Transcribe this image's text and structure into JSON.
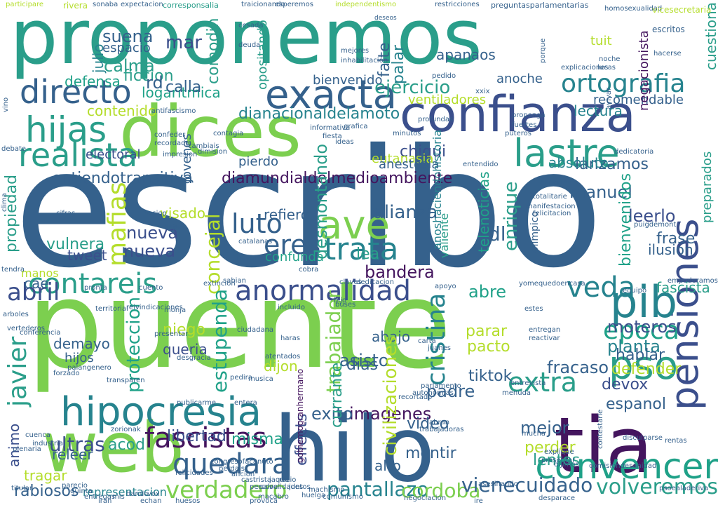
{
  "colors": {
    "background": "#ffffff",
    "palette": [
      "#35618c",
      "#2a9e8a",
      "#7ccf4f",
      "#44155e",
      "#3b4f8c",
      "#1fa188",
      "#b4dd2b",
      "#26838e"
    ]
  },
  "words": [
    {
      "text": "escribo",
      "color": "#35618c"
    },
    {
      "text": "puente",
      "color": "#7ccf4f"
    },
    {
      "text": "proponemos",
      "color": "#2a9e8a"
    },
    {
      "text": "confianza",
      "color": "#3b4f8c"
    },
    {
      "text": "dices",
      "color": "#7ccf4f"
    },
    {
      "text": "hilo",
      "color": "#35618c"
    },
    {
      "text": "tia",
      "color": "#44155e"
    },
    {
      "text": "web",
      "color": "#7ccf4f"
    },
    {
      "text": "hipocresia",
      "color": "#26838e"
    },
    {
      "text": "exacta",
      "color": "#35618c"
    },
    {
      "text": "lastre",
      "color": "#2a9e8a"
    },
    {
      "text": "pensiones",
      "color": "#3b4f8c"
    },
    {
      "text": "pso",
      "color": "#2a9e8a"
    },
    {
      "text": "pib",
      "color": "#26838e"
    },
    {
      "text": "directo",
      "color": "#35618c"
    },
    {
      "text": "contareis",
      "color": "#2a9e8a"
    },
    {
      "text": "anormalidad",
      "color": "#3b4f8c"
    },
    {
      "text": "convencer",
      "color": "#1fa188"
    },
    {
      "text": "realista",
      "color": "#2a9e8a"
    },
    {
      "text": "ortografia",
      "color": "#26838e"
    },
    {
      "text": "ave",
      "color": "#7ccf4f"
    },
    {
      "text": "fascistas",
      "color": "#44155e"
    },
    {
      "text": "quedara",
      "color": "#35618c"
    },
    {
      "text": "hijas",
      "color": "#2a9e8a"
    },
    {
      "text": "epoca",
      "color": "#1fa188"
    },
    {
      "text": "veda",
      "color": "#26838e"
    },
    {
      "text": "luto",
      "color": "#35618c"
    },
    {
      "text": "eres",
      "color": "#35618c"
    },
    {
      "text": "trata",
      "color": "#26838e"
    },
    {
      "text": "extra",
      "color": "#2a9e8a"
    },
    {
      "text": "abril",
      "color": "#3b4f8c"
    },
    {
      "text": "cristina",
      "color": "#26838e"
    },
    {
      "text": "mafias",
      "color": "#b4dd2b"
    },
    {
      "text": "javier",
      "color": "#2a9e8a"
    },
    {
      "text": "verdadero",
      "color": "#7ccf4f"
    },
    {
      "text": "volveremos",
      "color": "#2a9e8a"
    },
    {
      "text": "pantallazo",
      "color": "#26838e"
    },
    {
      "text": "cordoba",
      "color": "#7ccf4f"
    },
    {
      "text": "vienecuidado",
      "color": "#35618c"
    },
    {
      "text": "imagenes",
      "color": "#44155e"
    },
    {
      "text": "ultras",
      "color": "#3b4f8c"
    },
    {
      "text": "diamundialdelmedioambiente",
      "color": "#44155e"
    },
    {
      "text": "dianacionaldelamoto",
      "color": "#26838e"
    },
    {
      "text": "entiendotransitiva",
      "color": "#35618c"
    },
    {
      "text": "ejercicio",
      "color": "#2a9e8a"
    },
    {
      "text": "alianza",
      "color": "#35618c"
    },
    {
      "text": "bandera",
      "color": "#44155e"
    },
    {
      "text": "nueva",
      "color": "#3b4f8c"
    },
    {
      "text": "fracaso",
      "color": "#35618c"
    },
    {
      "text": "planta",
      "color": "#26838e"
    },
    {
      "text": "moteros",
      "color": "#3b4f8c"
    },
    {
      "text": "lanzamos",
      "color": "#35618c"
    },
    {
      "text": "manuel",
      "color": "#35618c"
    },
    {
      "text": "leerlo",
      "color": "#3b4f8c"
    },
    {
      "text": "chiqui",
      "color": "#3b4f8c"
    },
    {
      "text": "lectura",
      "color": "#26838e"
    },
    {
      "text": "absoluto",
      "color": "#26838e"
    },
    {
      "text": "propiedad",
      "color": "#2a9e8a"
    },
    {
      "text": "concejal",
      "color": "#b4dd2b"
    },
    {
      "text": "bienvenidos",
      "color": "#1fa188"
    },
    {
      "text": "trabajador",
      "color": "#7ccf4f"
    },
    {
      "text": "estupenda",
      "color": "#1fa188"
    },
    {
      "text": "proteccion",
      "color": "#1fa188"
    },
    {
      "text": "exito",
      "color": "#35618c"
    },
    {
      "text": "mejor",
      "color": "#35618c"
    },
    {
      "text": "padre",
      "color": "#35618c"
    },
    {
      "text": "libertad",
      "color": "#3b4f8c"
    },
    {
      "text": "misma",
      "color": "#1fa188"
    },
    {
      "text": "acod",
      "color": "#2a9e8a"
    },
    {
      "text": "perder",
      "color": "#b4dd2b"
    },
    {
      "text": "espanol",
      "color": "#35618c"
    },
    {
      "text": "devox",
      "color": "#3b4f8c"
    },
    {
      "text": "frase",
      "color": "#35618c"
    },
    {
      "text": "ilusion",
      "color": "#35618c"
    },
    {
      "text": "fascista",
      "color": "#2a9e8a"
    },
    {
      "text": "dl",
      "color": "#35618c"
    },
    {
      "text": "mar",
      "color": "#3b4f8c"
    },
    {
      "text": "suena",
      "color": "#35618c"
    },
    {
      "text": "calma",
      "color": "#2a9e8a"
    },
    {
      "text": "ficcion",
      "color": "#2a9e8a"
    },
    {
      "text": "logaritmica",
      "color": "#1fa188"
    },
    {
      "text": "contenido",
      "color": "#b4dd2b"
    },
    {
      "text": "electoral",
      "color": "#3b4f8c"
    },
    {
      "text": "visado",
      "color": "#b4dd2b"
    },
    {
      "text": "refiero",
      "color": "#35618c"
    },
    {
      "text": "tweet",
      "color": "#3b4f8c"
    },
    {
      "text": "vulnera",
      "color": "#2a9e8a"
    },
    {
      "text": "abre",
      "color": "#1fa188"
    },
    {
      "text": "dijon",
      "color": "#b4dd2b"
    },
    {
      "text": "niego",
      "color": "#b4dd2b"
    },
    {
      "text": "queria",
      "color": "#3b4f8c"
    },
    {
      "text": "demayo",
      "color": "#35618c"
    },
    {
      "text": "hijos",
      "color": "#35618c"
    },
    {
      "text": "asisto",
      "color": "#35618c"
    },
    {
      "text": "pacto",
      "color": "#b4dd2b"
    },
    {
      "text": "tiktok",
      "color": "#35618c"
    },
    {
      "text": "parar",
      "color": "#b4dd2b"
    },
    {
      "text": "hablar",
      "color": "#35618c"
    },
    {
      "text": "defender",
      "color": "#b4dd2b"
    },
    {
      "text": "lentos",
      "color": "#2a9e8a"
    },
    {
      "text": "dias",
      "color": "#35618c"
    },
    {
      "text": "abajo",
      "color": "#35618c"
    },
    {
      "text": "tragar",
      "color": "#b4dd2b"
    },
    {
      "text": "rabiosos",
      "color": "#35618c"
    },
    {
      "text": "representacion",
      "color": "#26838e"
    },
    {
      "text": "currante",
      "color": "#2a9e8a"
    },
    {
      "text": "effects",
      "color": "#3b4f8c"
    },
    {
      "text": "mentir",
      "color": "#35618c"
    },
    {
      "text": "alto",
      "color": "#35618c"
    },
    {
      "text": "video",
      "color": "#35618c"
    },
    {
      "text": "lea",
      "color": "#2a9e8a"
    },
    {
      "text": "cae",
      "color": "#35618c"
    },
    {
      "text": "manos",
      "color": "#b4dd2b"
    },
    {
      "text": "ventiladores",
      "color": "#b4dd2b"
    },
    {
      "text": "anoche",
      "color": "#35618c"
    },
    {
      "text": "recomendable",
      "color": "#35618c"
    },
    {
      "text": "apanaos",
      "color": "#35618c"
    },
    {
      "text": "palar",
      "color": "#26838e"
    },
    {
      "text": "falte",
      "color": "#35618c"
    },
    {
      "text": "julio",
      "color": "#26838e"
    },
    {
      "text": "espacio",
      "color": "#35618c"
    },
    {
      "text": "cuestiona",
      "color": "#2a9e8a"
    },
    {
      "text": "tuit",
      "color": "#b4dd2b"
    },
    {
      "text": "negacionista",
      "color": "#44155e"
    },
    {
      "text": "comodin",
      "color": "#2a9e8a"
    },
    {
      "text": "opositando",
      "color": "#2a9e8a"
    },
    {
      "text": "jovenes",
      "color": "#35618c"
    },
    {
      "text": "eutanasia",
      "color": "#b4dd2b"
    },
    {
      "text": "anestesia",
      "color": "#35618c"
    },
    {
      "text": "pierdo",
      "color": "#35618c"
    },
    {
      "text": "desmontando",
      "color": "#2a9e8a"
    },
    {
      "text": "confunda",
      "color": "#1fa188"
    },
    {
      "text": "nueva",
      "color": "#3b4f8c"
    },
    {
      "text": "enrique",
      "color": "#2a9e8a"
    },
    {
      "text": "preparados",
      "color": "#2a9e8a"
    },
    {
      "text": "valiente",
      "color": "#2a9e8a"
    },
    {
      "text": "anoshaciendohistoria",
      "color": "#26838e"
    },
    {
      "text": "telenoticias",
      "color": "#1fa188"
    },
    {
      "text": "olimpico",
      "color": "#35618c"
    },
    {
      "text": "rd",
      "color": "#35618c"
    },
    {
      "text": "calla",
      "color": "#35618c"
    },
    {
      "text": "defensa",
      "color": "#1fa188"
    },
    {
      "text": "bienvenido",
      "color": "#35618c"
    },
    {
      "text": "animo",
      "color": "#3b4f8c"
    },
    {
      "text": "releer",
      "color": "#35618c"
    },
    {
      "text": "gobiernogranhermano",
      "color": "#44155e"
    },
    {
      "text": "civilizaciones",
      "color": "#b4dd2b"
    },
    {
      "text": "participare",
      "color": "#b4dd2b"
    },
    {
      "text": "rivera",
      "color": "#b4dd2b"
    },
    {
      "text": "sonaba",
      "color": "#35618c"
    },
    {
      "text": "expectacion",
      "color": "#35618c"
    },
    {
      "text": "corresponsalia",
      "color": "#2a9e8a"
    },
    {
      "text": "traicionando",
      "color": "#35618c"
    },
    {
      "text": "esperemos",
      "color": "#35618c"
    },
    {
      "text": "independentismo",
      "color": "#b4dd2b"
    },
    {
      "text": "restricciones",
      "color": "#35618c"
    },
    {
      "text": "preguntasparlamentarias",
      "color": "#35618c"
    },
    {
      "text": "homosexualidad",
      "color": "#35618c"
    },
    {
      "text": "vicesecretaria",
      "color": "#b4dd2b"
    },
    {
      "text": "escritos",
      "color": "#35618c"
    },
    {
      "text": "explicaciones",
      "color": "#35618c"
    },
    {
      "text": "hacerse",
      "color": "#35618c"
    },
    {
      "text": "deseos",
      "color": "#35618c"
    },
    {
      "text": "cesada",
      "color": "#35618c"
    },
    {
      "text": "deuda",
      "color": "#35618c"
    },
    {
      "text": "pedido",
      "color": "#35618c"
    },
    {
      "text": "inhabilitacion",
      "color": "#35618c"
    },
    {
      "text": "mejores",
      "color": "#35618c"
    },
    {
      "text": "noche",
      "color": "#35618c"
    },
    {
      "text": "lucas",
      "color": "#35618c"
    },
    {
      "text": "porque",
      "color": "#35618c"
    },
    {
      "text": "xxix",
      "color": "#35618c"
    },
    {
      "text": "proponga",
      "color": "#35618c"
    },
    {
      "text": "fuertes",
      "color": "#35618c"
    },
    {
      "text": "puteros",
      "color": "#35618c"
    },
    {
      "text": "profundas",
      "color": "#35618c"
    },
    {
      "text": "grafica",
      "color": "#35618c"
    },
    {
      "text": "minutos",
      "color": "#35618c"
    },
    {
      "text": "cambiais",
      "color": "#35618c"
    },
    {
      "text": "dimision",
      "color": "#35618c"
    },
    {
      "text": "puigdemont",
      "color": "#35618c"
    },
    {
      "text": "cifras",
      "color": "#35618c"
    },
    {
      "text": "sesion",
      "color": "#35618c"
    },
    {
      "text": "dejar",
      "color": "#35618c"
    },
    {
      "text": "catalanas",
      "color": "#35618c"
    },
    {
      "text": "navai",
      "color": "#35618c"
    },
    {
      "text": "cobra",
      "color": "#35618c"
    },
    {
      "text": "claves",
      "color": "#35618c"
    },
    {
      "text": "sabian",
      "color": "#35618c"
    },
    {
      "text": "dedicacion",
      "color": "#35618c"
    },
    {
      "text": "apoyo",
      "color": "#35618c"
    },
    {
      "text": "yomequedoencasa",
      "color": "#35618c"
    },
    {
      "text": "equipo",
      "color": "#35618c"
    },
    {
      "text": "empoderamos",
      "color": "#35618c"
    },
    {
      "text": "pronta",
      "color": "#35618c"
    },
    {
      "text": "cuento",
      "color": "#35618c"
    },
    {
      "text": "extincion",
      "color": "#35618c"
    },
    {
      "text": "territorial",
      "color": "#35618c"
    },
    {
      "text": "reivindicaciones",
      "color": "#35618c"
    },
    {
      "text": "monja",
      "color": "#35618c"
    },
    {
      "text": "incluido",
      "color": "#35618c"
    },
    {
      "text": "buses",
      "color": "#35618c"
    },
    {
      "text": "estes",
      "color": "#35618c"
    },
    {
      "text": "arboles",
      "color": "#35618c"
    },
    {
      "text": "vertederos",
      "color": "#35618c"
    },
    {
      "text": "conferencia",
      "color": "#35618c"
    },
    {
      "text": "presentar",
      "color": "#35618c"
    },
    {
      "text": "ciudadana",
      "color": "#35618c"
    },
    {
      "text": "haras",
      "color": "#35618c"
    },
    {
      "text": "carta",
      "color": "#35618c"
    },
    {
      "text": "juanes",
      "color": "#35618c"
    },
    {
      "text": "entregan",
      "color": "#35618c"
    },
    {
      "text": "reactivar",
      "color": "#35618c"
    },
    {
      "text": "palangenero",
      "color": "#35618c"
    },
    {
      "text": "forzado",
      "color": "#35618c"
    },
    {
      "text": "desgracia",
      "color": "#35618c"
    },
    {
      "text": "atentados",
      "color": "#35618c"
    },
    {
      "text": "entrevista",
      "color": "#35618c"
    },
    {
      "text": "menuda",
      "color": "#35618c"
    },
    {
      "text": "transparen",
      "color": "#35618c"
    },
    {
      "text": "pedira",
      "color": "#35618c"
    },
    {
      "text": "musica",
      "color": "#35618c"
    },
    {
      "text": "parlamento",
      "color": "#35618c"
    },
    {
      "text": "recortado",
      "color": "#35618c"
    },
    {
      "text": "publicarme",
      "color": "#35618c"
    },
    {
      "text": "entera",
      "color": "#35618c"
    },
    {
      "text": "autonomias",
      "color": "#35618c"
    },
    {
      "text": "abran",
      "color": "#35618c"
    },
    {
      "text": "trabajadoras",
      "color": "#35618c"
    },
    {
      "text": "zorionak",
      "color": "#35618c"
    },
    {
      "text": "mucha",
      "color": "#35618c"
    },
    {
      "text": "disculparse",
      "color": "#35618c"
    },
    {
      "text": "rentas",
      "color": "#35618c"
    },
    {
      "text": "plenaria",
      "color": "#35618c"
    },
    {
      "text": "titular",
      "color": "#35618c"
    },
    {
      "text": "felicidades",
      "color": "#35618c"
    },
    {
      "text": "macabro",
      "color": "#35618c"
    },
    {
      "text": "machismo",
      "color": "#35618c"
    },
    {
      "text": "comunismo",
      "color": "#35618c"
    },
    {
      "text": "negociacion",
      "color": "#35618c"
    },
    {
      "text": "ire",
      "color": "#35618c"
    },
    {
      "text": "desparace",
      "color": "#35618c"
    },
    {
      "text": "psoealaderiva",
      "color": "#35618c"
    },
    {
      "text": "provoca",
      "color": "#35618c"
    },
    {
      "text": "huesos",
      "color": "#35618c"
    },
    {
      "text": "presentar",
      "color": "#35618c"
    },
    {
      "text": "dijimos",
      "color": "#35618c"
    },
    {
      "text": "asesinando",
      "color": "#35618c"
    },
    {
      "text": "contestarle",
      "color": "#35618c"
    },
    {
      "text": "comisiondesanidad",
      "color": "#35618c"
    },
    {
      "text": "explique",
      "color": "#35618c"
    },
    {
      "text": "felicitacion",
      "color": "#35618c"
    },
    {
      "text": "deportes",
      "color": "#35618c"
    },
    {
      "text": "totalitarie",
      "color": "#35618c"
    },
    {
      "text": "manifestacion",
      "color": "#35618c"
    },
    {
      "text": "avivar",
      "color": "#35618c"
    },
    {
      "text": "antifascismo",
      "color": "#35618c"
    },
    {
      "text": "confeder",
      "color": "#35618c"
    },
    {
      "text": "recordado",
      "color": "#35618c"
    },
    {
      "text": "impresion",
      "color": "#35618c"
    },
    {
      "text": "contagia",
      "color": "#35618c"
    },
    {
      "text": "informativa",
      "color": "#35618c"
    },
    {
      "text": "fiesta",
      "color": "#35618c"
    },
    {
      "text": "ideas",
      "color": "#35618c"
    },
    {
      "text": "entendido",
      "color": "#35618c"
    },
    {
      "text": "dedicatoria",
      "color": "#35618c"
    },
    {
      "text": "vino",
      "color": "#35618c"
    },
    {
      "text": "debate",
      "color": "#35618c"
    },
    {
      "text": "clima",
      "color": "#35618c"
    },
    {
      "text": "tendra",
      "color": "#35618c"
    },
    {
      "text": "hijo",
      "color": "#35618c"
    },
    {
      "text": "cuenca",
      "color": "#35618c"
    },
    {
      "text": "industria",
      "color": "#35618c"
    },
    {
      "text": "parecio",
      "color": "#35618c"
    },
    {
      "text": "quinta",
      "color": "#35618c"
    },
    {
      "text": "entregas",
      "color": "#35618c"
    },
    {
      "text": "iran",
      "color": "#35618c"
    },
    {
      "text": "mis",
      "color": "#35618c"
    },
    {
      "text": "dando",
      "color": "#35618c"
    },
    {
      "text": "echan",
      "color": "#35618c"
    },
    {
      "text": "vox",
      "color": "#35618c"
    },
    {
      "text": "congresofacanuto",
      "color": "#35618c"
    },
    {
      "text": "perdais",
      "color": "#35618c"
    },
    {
      "text": "aficion",
      "color": "#35618c"
    },
    {
      "text": "castrista",
      "color": "#35618c"
    },
    {
      "text": "personalidades",
      "color": "#35618c"
    },
    {
      "text": "salvo",
      "color": "#35618c"
    },
    {
      "text": "jaque",
      "color": "#35618c"
    },
    {
      "text": "rocio",
      "color": "#35618c"
    },
    {
      "text": "juntos",
      "color": "#35618c"
    },
    {
      "text": "huelga",
      "color": "#35618c"
    },
    {
      "text": "rumbo",
      "color": "#35618c"
    },
    {
      "text": "voces",
      "color": "#35618c"
    },
    {
      "text": "mayo",
      "color": "#35618c"
    },
    {
      "text": "chat",
      "color": "#35618c"
    },
    {
      "text": "pepe",
      "color": "#35618c"
    },
    {
      "text": "lucha",
      "color": "#35618c"
    },
    {
      "text": "gente",
      "color": "#35618c"
    },
    {
      "text": "tema",
      "color": "#35618c"
    },
    {
      "text": "ojos",
      "color": "#35618c"
    },
    {
      "text": "plan",
      "color": "#35618c"
    },
    {
      "text": "sano",
      "color": "#35618c"
    },
    {
      "text": "sala",
      "color": "#35618c"
    },
    {
      "text": "piso",
      "color": "#35618c"
    },
    {
      "text": "zona",
      "color": "#35618c"
    },
    {
      "text": "poco",
      "color": "#35618c"
    },
    {
      "text": "foro",
      "color": "#35618c"
    }
  ]
}
